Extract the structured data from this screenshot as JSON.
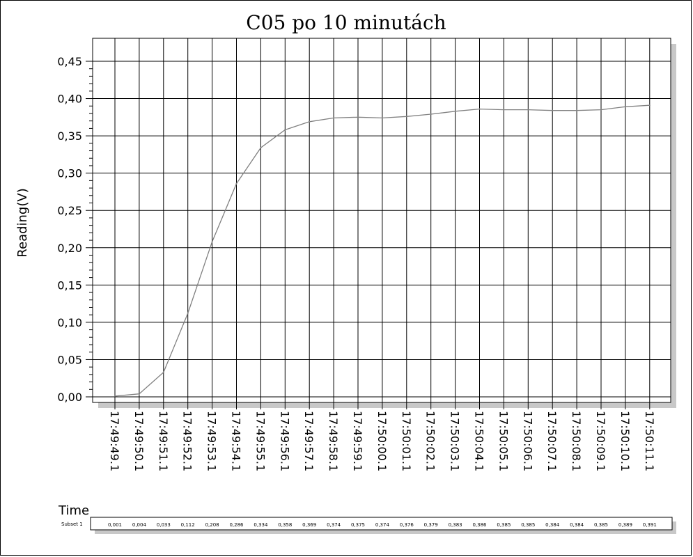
{
  "chart_data": {
    "type": "line",
    "title": "C05 po 10 minutách",
    "xlabel": "Time",
    "ylabel": "Reading(V)",
    "ylim": [
      0,
      0.45
    ],
    "yticks": [
      "0,00",
      "0,05",
      "0,10",
      "0,15",
      "0,20",
      "0,25",
      "0,30",
      "0,35",
      "0,40",
      "0,45"
    ],
    "categories": [
      "17:49:49.1",
      "17:49:50.1",
      "17:49:51.1",
      "17:49:52.1",
      "17:49:53.1",
      "17:49:54.1",
      "17:49:55.1",
      "17:49:56.1",
      "17:49:57.1",
      "17:49:58.1",
      "17:49:59.1",
      "17:50:00.1",
      "17:50:01.1",
      "17:50:02.1",
      "17:50:03.1",
      "17:50:04.1",
      "17:50:05.1",
      "17:50:06.1",
      "17:50:07.1",
      "17:50:08.1",
      "17:50:09.1",
      "17:50:10.1",
      "17:50:11.1"
    ],
    "series": [
      {
        "name": "Subset 1",
        "values": [
          0.001,
          0.004,
          0.033,
          0.112,
          0.208,
          0.286,
          0.334,
          0.358,
          0.369,
          0.374,
          0.375,
          0.374,
          0.376,
          0.379,
          0.383,
          0.386,
          0.385,
          0.385,
          0.384,
          0.384,
          0.385,
          0.389,
          0.391
        ],
        "labels": [
          "0,001",
          "0,004",
          "0,033",
          "0,112",
          "0,208",
          "0,286",
          "0,334",
          "0,358",
          "0,369",
          "0,374",
          "0,375",
          "0,374",
          "0,376",
          "0,379",
          "0,383",
          "0,386",
          "0,385",
          "0,385",
          "0,384",
          "0,384",
          "0,385",
          "0,389",
          "0,391"
        ]
      }
    ],
    "grid": true,
    "legend": "none",
    "colors": {
      "line": "#808080",
      "grid": "#000000",
      "shadow": "#c8c8c8"
    }
  }
}
